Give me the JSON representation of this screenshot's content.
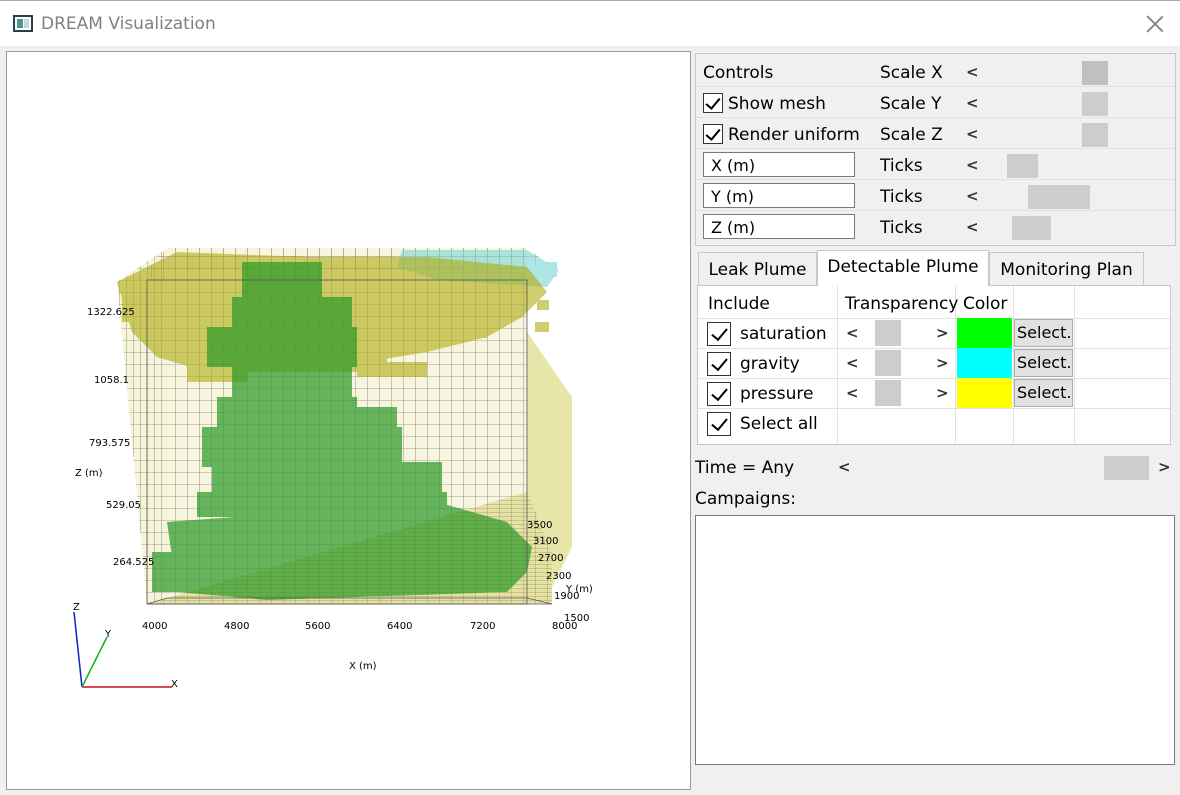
{
  "window": {
    "title": "DREAM Visualization"
  },
  "controls": {
    "header": "Controls",
    "show_mesh": {
      "label": "Show mesh",
      "checked": true
    },
    "render_uniform": {
      "label": "Render uniform",
      "checked": true
    },
    "x_axis_label": "X (m)",
    "y_axis_label": "Y (m)",
    "z_axis_label": "Z (m)",
    "scale_x_label": "Scale X",
    "scale_y_label": "Scale Y",
    "scale_z_label": "Scale Z",
    "ticks_label": "Ticks",
    "slider_arrow": "<"
  },
  "tabs": [
    {
      "label": "Leak Plume",
      "active": false
    },
    {
      "label": "Detectable Plume",
      "active": true
    },
    {
      "label": "Monitoring Plan",
      "active": false
    }
  ],
  "plume_table": {
    "headers": {
      "include": "Include",
      "transparency": "Transparency",
      "color": "Color"
    },
    "rows": [
      {
        "label": "saturation",
        "checked": true,
        "color": "#00ff00",
        "button": "Select..."
      },
      {
        "label": "gravity",
        "checked": true,
        "color": "#00ffff",
        "button": "Select..."
      },
      {
        "label": "pressure",
        "checked": true,
        "color": "#ffff00",
        "button": "Select..."
      }
    ],
    "select_all": {
      "label": "Select all",
      "checked": true
    },
    "arrow_left": "<",
    "arrow_right": ">"
  },
  "time": {
    "label": "Time = Any",
    "arrow_left": "<",
    "arrow_right": ">"
  },
  "campaigns": {
    "label": "Campaigns:"
  },
  "plot": {
    "x_axis_title": "X (m)",
    "y_axis_title": "Y (m)",
    "z_axis_title": "Z (m)",
    "x_ticks": [
      "4000",
      "4800",
      "5600",
      "6400",
      "7200",
      "8000"
    ],
    "y_ticks": [
      "3500",
      "3100",
      "2700",
      "2300",
      "1900",
      "1500"
    ],
    "z_ticks": [
      "1322.625",
      "1058.1",
      "793.575",
      "529.05",
      "264.525"
    ],
    "triad": {
      "x": "X",
      "y": "Y",
      "z": "Z"
    },
    "colors": {
      "saturation": "#2e9a2a",
      "gravity": "#7ad4d4",
      "pressure": "#b0ac10",
      "mesh": "#3a3a3a",
      "floor": "#e6e2a0"
    }
  }
}
